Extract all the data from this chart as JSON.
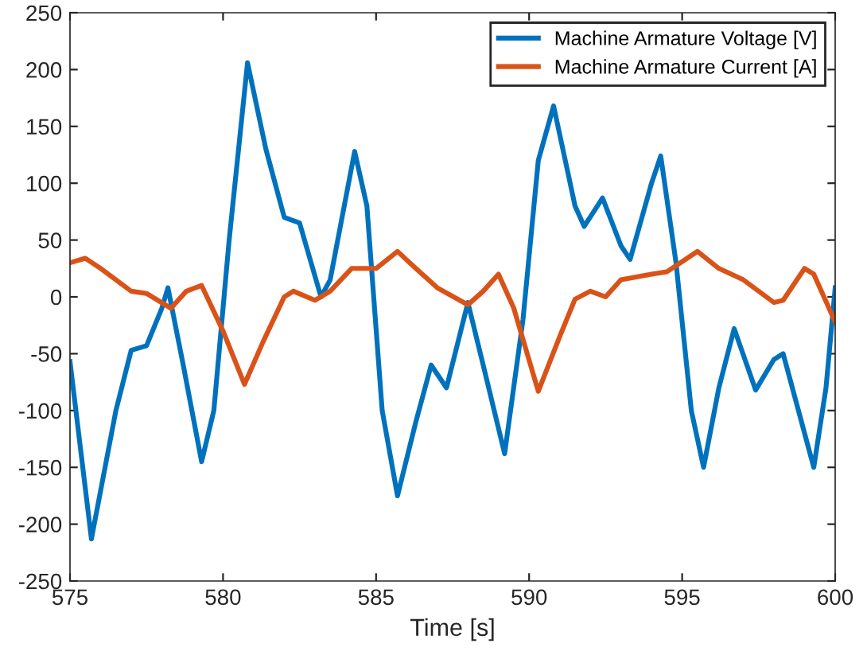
{
  "chart_data": {
    "type": "line",
    "xlabel": "Time [s]",
    "xlim": [
      575,
      600
    ],
    "ylim": [
      -250,
      250
    ],
    "xticks": [
      575,
      580,
      585,
      590,
      595,
      600
    ],
    "yticks": [
      -250,
      -200,
      -150,
      -100,
      -50,
      0,
      50,
      100,
      150,
      200,
      250
    ],
    "grid": false,
    "legend": "top right",
    "line_style": "solid",
    "marker": "none",
    "series": [
      {
        "name": "Machine Armature Voltage [V]",
        "color": "#0072bd",
        "x": [
          575,
          575.7,
          576.5,
          577,
          577.5,
          578,
          578.2,
          578.7,
          579.3,
          579.7,
          580.2,
          580.8,
          581.4,
          582,
          582.5,
          583.2,
          583.5,
          584.3,
          584.7,
          585.2,
          585.7,
          586.3,
          586.8,
          587.3,
          588,
          588.5,
          589.2,
          589.8,
          590.3,
          590.8,
          591.5,
          591.8,
          592.4,
          593,
          593.3,
          594,
          594.3,
          594.8,
          595.3,
          595.7,
          596.2,
          596.7,
          597.4,
          598,
          598.3,
          599,
          599.3,
          599.7,
          600
        ],
        "values": [
          -57,
          -213,
          -100,
          -47,
          -43,
          -10,
          8,
          -60,
          -145,
          -100,
          50,
          206,
          130,
          70,
          65,
          0,
          15,
          128,
          80,
          -100,
          -175,
          -110,
          -60,
          -80,
          -5,
          -60,
          -138,
          -20,
          120,
          168,
          80,
          62,
          87,
          45,
          33,
          100,
          124,
          30,
          -100,
          -150,
          -80,
          -28,
          -82,
          -55,
          -50,
          -120,
          -150,
          -80,
          8
        ]
      },
      {
        "name": "Machine Armature Current [A]",
        "color": "#d95319",
        "x": [
          575,
          575.5,
          576,
          577,
          577.5,
          578.3,
          578.8,
          579.3,
          580,
          580.7,
          581.3,
          582,
          582.3,
          583,
          583.5,
          584.2,
          585,
          585.7,
          586.3,
          587,
          588,
          588.5,
          589,
          589.5,
          590.3,
          591,
          591.5,
          592,
          592.5,
          593,
          594,
          594.5,
          595.5,
          596.2,
          597,
          598,
          598.3,
          599,
          599.3,
          600
        ],
        "values": [
          30,
          34,
          25,
          5,
          3,
          -10,
          5,
          10,
          -30,
          -77,
          -40,
          0,
          5,
          -3,
          5,
          25,
          25,
          40,
          25,
          8,
          -7,
          5,
          20,
          -10,
          -83,
          -35,
          -2,
          5,
          0,
          15,
          20,
          22,
          40,
          25,
          15,
          -5,
          -3,
          25,
          20,
          -22
        ]
      }
    ]
  }
}
